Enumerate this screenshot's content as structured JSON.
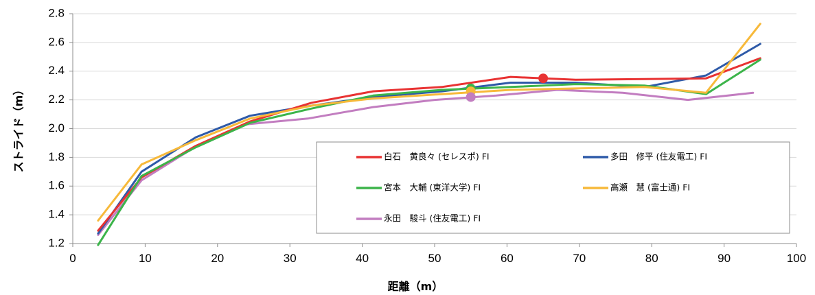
{
  "chart_data": {
    "type": "line",
    "title": "",
    "xlabel": "距離（m）",
    "ylabel": "ストライド（m）",
    "xlim": [
      0,
      100
    ],
    "ylim": [
      1.2,
      2.8
    ],
    "xticks": [
      "0",
      "10",
      "20",
      "30",
      "40",
      "50",
      "60",
      "70",
      "80",
      "90",
      "100"
    ],
    "yticks": [
      "1.2",
      "1.4",
      "1.6",
      "1.8",
      "2.0",
      "2.2",
      "2.4",
      "2.6",
      "2.8"
    ],
    "grid": "horizontal",
    "legend_position": "bottom-right",
    "series": [
      {
        "name": "白石　黄良々 (セレスポ) FI",
        "color": "#e83232",
        "x": [
          3.5,
          9.5,
          17,
          24.5,
          33,
          41.5,
          51,
          60.5,
          69.5,
          79,
          87.5,
          95
        ],
        "y": [
          1.29,
          1.66,
          1.88,
          2.05,
          2.18,
          2.26,
          2.29,
          2.36,
          2.34,
          2.345,
          2.35,
          2.49
        ],
        "marker": {
          "x": 65,
          "y": 2.35
        }
      },
      {
        "name": "多田　修平 (住友電工) FI",
        "color": "#2e5aa8",
        "x": [
          3.5,
          9.5,
          17,
          24.5,
          33,
          41.5,
          51,
          60.5,
          69.5,
          79,
          87.5,
          95
        ],
        "y": [
          1.27,
          1.7,
          1.94,
          2.09,
          2.16,
          2.22,
          2.26,
          2.32,
          2.32,
          2.29,
          2.37,
          2.59
        ]
      },
      {
        "name": "宮本　大輔 (東洋大学) FI",
        "color": "#3cb44a",
        "x": [
          3.5,
          9.5,
          17,
          24.5,
          33,
          41.5,
          51,
          60.5,
          69.5,
          79,
          87.5,
          95
        ],
        "y": [
          1.19,
          1.67,
          1.87,
          2.04,
          2.14,
          2.23,
          2.27,
          2.29,
          2.31,
          2.3,
          2.24,
          2.48
        ],
        "marker": {
          "x": 55,
          "y": 2.28
        }
      },
      {
        "name": "高瀬　慧 (富士通) FI",
        "color": "#f7b93a",
        "x": [
          3.5,
          9.5,
          17,
          24.5,
          33,
          41.5,
          51,
          60.5,
          69.5,
          79,
          87.5,
          95
        ],
        "y": [
          1.36,
          1.75,
          1.92,
          2.07,
          2.16,
          2.21,
          2.24,
          2.27,
          2.28,
          2.29,
          2.25,
          2.73
        ],
        "marker": {
          "x": 55,
          "y": 2.26
        }
      },
      {
        "name": "永田　駿斗 (住友電工) FI",
        "color": "#c27dc0",
        "x": [
          3.5,
          9.5,
          16.5,
          24,
          32.5,
          41.5,
          50,
          58.5,
          67,
          76,
          85,
          94
        ],
        "y": [
          1.26,
          1.64,
          1.86,
          2.03,
          2.07,
          2.15,
          2.2,
          2.23,
          2.27,
          2.25,
          2.2,
          2.25
        ],
        "marker": {
          "x": 55,
          "y": 2.22
        }
      }
    ]
  }
}
